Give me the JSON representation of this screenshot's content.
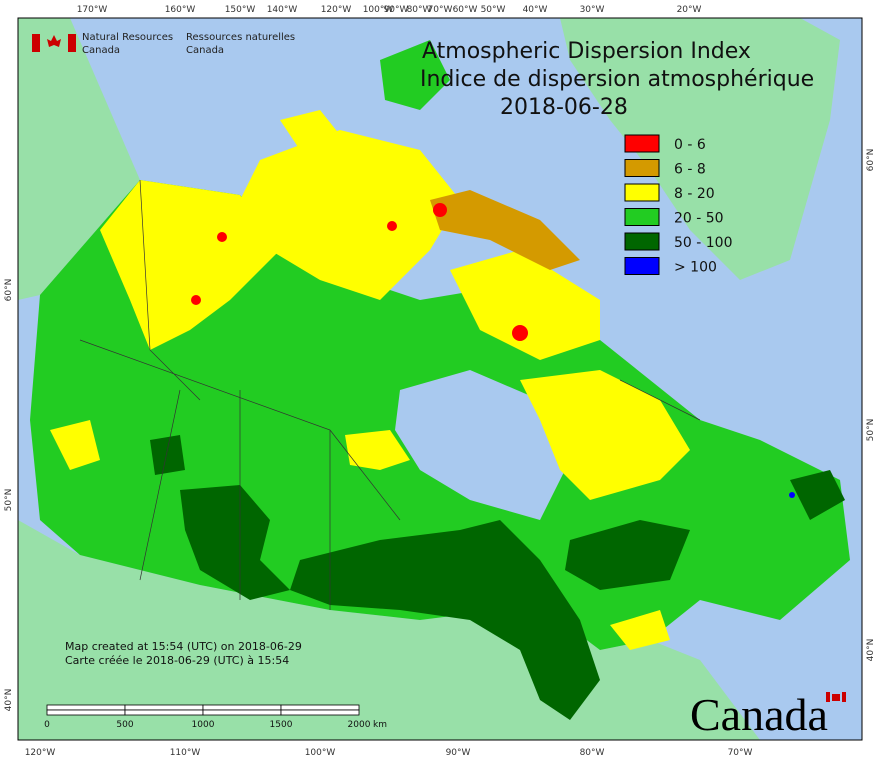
{
  "header": {
    "org_en": [
      "Natural Resources",
      "Canada"
    ],
    "org_fr": [
      "Ressources naturelles",
      "Canada"
    ]
  },
  "title": [
    "Atmospheric Dispersion Index",
    "Indice de dispersion atmosphérique"
  ],
  "date": "2018-06-28",
  "legend": [
    {
      "label": "0 - 6",
      "color": "#ff0000"
    },
    {
      "label": "6 - 8",
      "color": "#d49a00"
    },
    {
      "label": "8 - 20",
      "color": "#ffff00"
    },
    {
      "label": "20 - 50",
      "color": "#22cc22"
    },
    {
      "label": "50 - 100",
      "color": "#006600"
    },
    {
      "label": "> 100",
      "color": "#0000ff"
    }
  ],
  "graticule": {
    "top": [
      "170°W",
      "160°W",
      "150°W",
      "140°W",
      "120°W",
      "100°W",
      "90°W",
      "80°W",
      "70°W",
      "60°W",
      "50°W",
      "40°W",
      "30°W",
      "20°W"
    ],
    "bottom": [
      "120°W",
      "110°W",
      "100°W",
      "90°W",
      "80°W",
      "70°W"
    ],
    "left": [
      "60°N",
      "50°N",
      "40°N"
    ],
    "right": [
      "60°N",
      "50°N",
      "40°N"
    ]
  },
  "credits": [
    "Map created at 15:54 (UTC) on 2018-06-29",
    "Carte créée le 2018-06-29 (UTC) à 15:54"
  ],
  "scale": {
    "ticks": [
      "0",
      "500",
      "1000",
      "1500",
      "2000"
    ],
    "unit": "km"
  },
  "wordmark": "Canada"
}
